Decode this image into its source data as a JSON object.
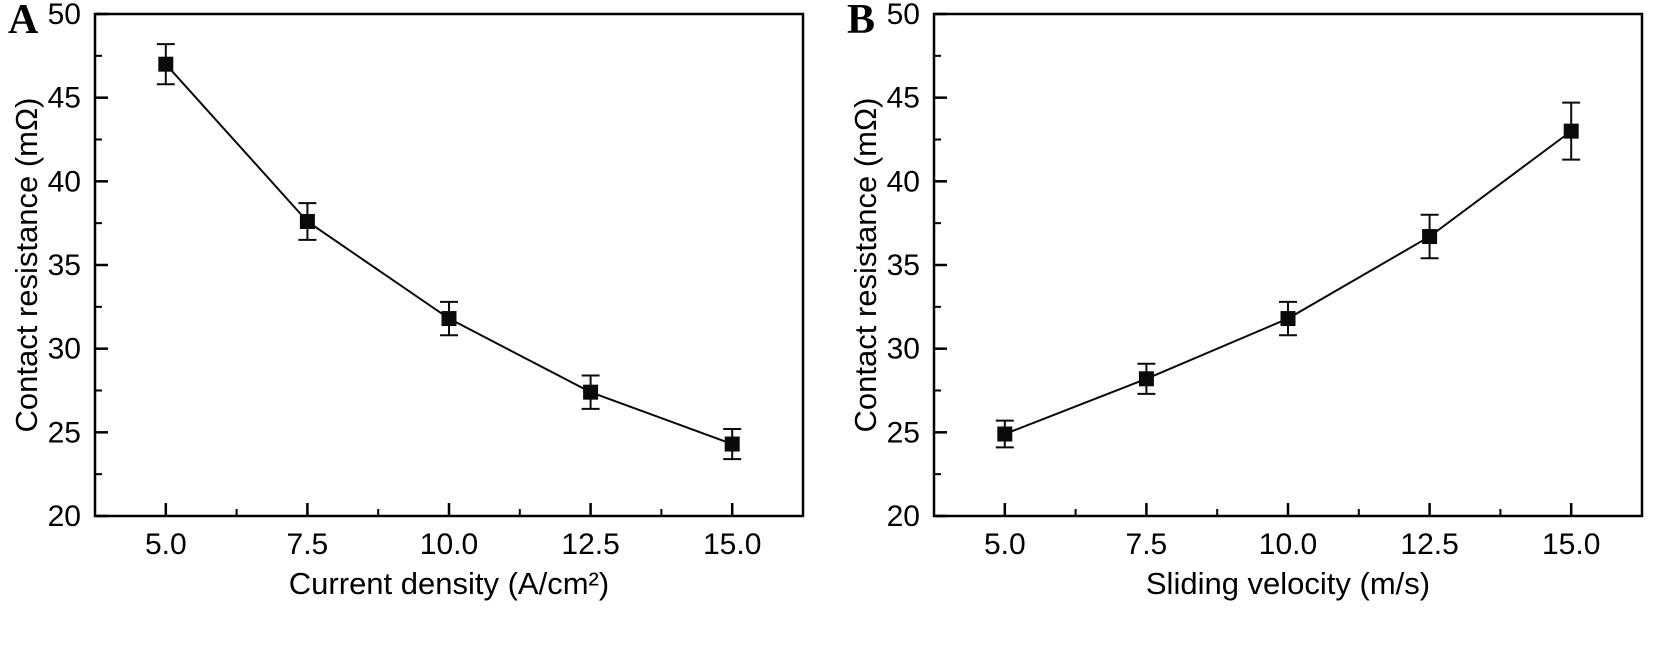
{
  "figure": {
    "background": "#ffffff",
    "axis_color": "#000000",
    "series_color": "#0a0a0a"
  },
  "chart_data": [
    {
      "type": "line",
      "panel_label": "A",
      "title": "",
      "xlabel": "Current density (A/cm²)",
      "ylabel": "Contact resistance (mΩ)",
      "x": [
        5.0,
        7.5,
        10.0,
        12.5,
        15.0
      ],
      "y": [
        47.0,
        37.6,
        31.8,
        27.4,
        24.3
      ],
      "yerr": [
        1.2,
        1.1,
        1.0,
        1.0,
        0.9
      ],
      "xticks": [
        "5.0",
        "7.5",
        "10.0",
        "12.5",
        "15.0"
      ],
      "yticks": [
        20,
        25,
        30,
        35,
        40,
        45,
        50
      ],
      "xlim": [
        3.75,
        16.25
      ],
      "ylim": [
        20,
        50
      ],
      "marker": "filled-square",
      "error_caps": true,
      "grid": false,
      "legend": "none"
    },
    {
      "type": "line",
      "panel_label": "B",
      "title": "",
      "xlabel": "Sliding velocity (m/s)",
      "ylabel": "Contact resistance (mΩ)",
      "x": [
        5.0,
        7.5,
        10.0,
        12.5,
        15.0
      ],
      "y": [
        24.9,
        28.2,
        31.8,
        36.7,
        43.0
      ],
      "yerr": [
        0.8,
        0.9,
        1.0,
        1.3,
        1.7
      ],
      "xticks": [
        "5.0",
        "7.5",
        "10.0",
        "12.5",
        "15.0"
      ],
      "yticks": [
        20,
        25,
        30,
        35,
        40,
        45,
        50
      ],
      "xlim": [
        3.75,
        16.25
      ],
      "ylim": [
        20,
        50
      ],
      "marker": "filled-square",
      "error_caps": true,
      "grid": false,
      "legend": "none"
    }
  ]
}
